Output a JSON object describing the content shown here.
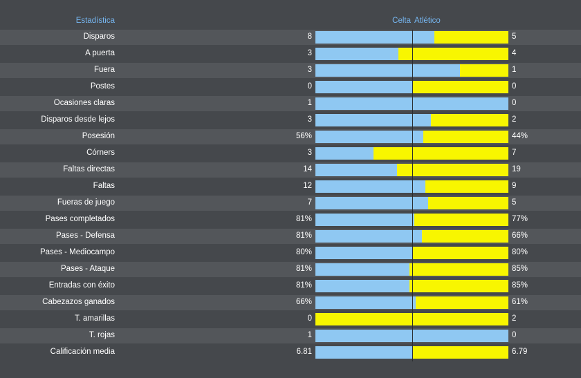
{
  "header": {
    "stat_label": "Estadística",
    "home_team": "Celta",
    "away_team": "Atlético"
  },
  "colors": {
    "home": "#8fc8f2",
    "away": "#f8f600",
    "header_text": "#76b6f0"
  },
  "stats": [
    {
      "label": "Disparos",
      "home": "8",
      "away": "5",
      "home_share": 0.615
    },
    {
      "label": "A puerta",
      "home": "3",
      "away": "4",
      "home_share": 0.43
    },
    {
      "label": "Fuera",
      "home": "3",
      "away": "1",
      "home_share": 0.75
    },
    {
      "label": "Postes",
      "home": "0",
      "away": "0",
      "home_share": 0.5
    },
    {
      "label": "Ocasiones claras",
      "home": "1",
      "away": "0",
      "home_share": 1.0
    },
    {
      "label": "Disparos desde lejos",
      "home": "3",
      "away": "2",
      "home_share": 0.6
    },
    {
      "label": "Posesión",
      "home": "56%",
      "away": "44%",
      "home_share": 0.56
    },
    {
      "label": "Córners",
      "home": "3",
      "away": "7",
      "home_share": 0.3
    },
    {
      "label": "Faltas directas",
      "home": "14",
      "away": "19",
      "home_share": 0.424
    },
    {
      "label": "Faltas",
      "home": "12",
      "away": "9",
      "home_share": 0.571
    },
    {
      "label": "Fueras de juego",
      "home": "7",
      "away": "5",
      "home_share": 0.583
    },
    {
      "label": "Pases completados",
      "home": "81%",
      "away": "77%",
      "home_share": 0.513
    },
    {
      "label": "Pases - Defensa",
      "home": "81%",
      "away": "66%",
      "home_share": 0.551
    },
    {
      "label": "Pases - Mediocampo",
      "home": "80%",
      "away": "80%",
      "home_share": 0.5
    },
    {
      "label": "Pases - Ataque",
      "home": "81%",
      "away": "85%",
      "home_share": 0.488
    },
    {
      "label": "Entradas con éxito",
      "home": "81%",
      "away": "85%",
      "home_share": 0.488
    },
    {
      "label": "Cabezazos ganados",
      "home": "66%",
      "away": "61%",
      "home_share": 0.52
    },
    {
      "label": "T. amarillas",
      "home": "0",
      "away": "2",
      "home_share": 0.0
    },
    {
      "label": "T. rojas",
      "home": "1",
      "away": "0",
      "home_share": 1.0
    },
    {
      "label": "Calificación media",
      "home": "6.81",
      "away": "6.79",
      "home_share": 0.5
    }
  ]
}
